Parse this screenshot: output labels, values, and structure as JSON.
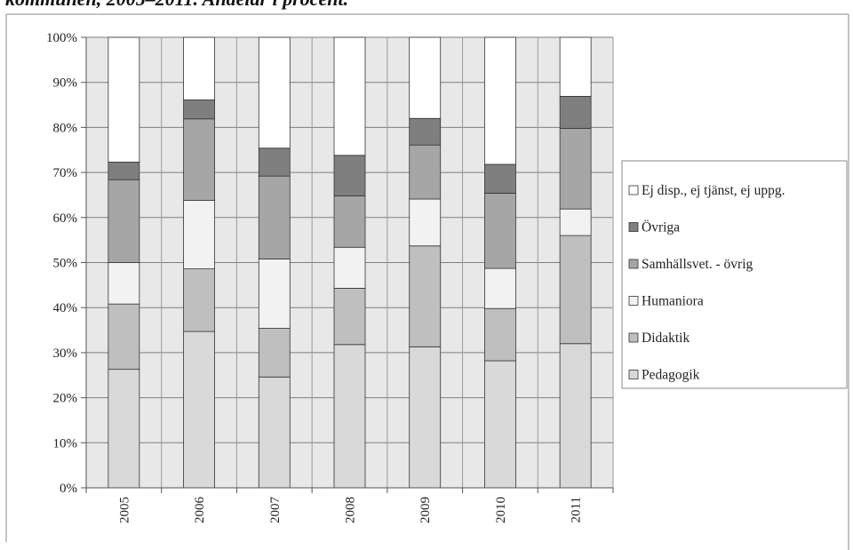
{
  "title": "kommunen, 2005–2011. Andelar i procent.",
  "chart_data": {
    "type": "bar",
    "stacked": true,
    "percent": true,
    "categories": [
      "2005",
      "2006",
      "2007",
      "2008",
      "2009",
      "2010",
      "2011"
    ],
    "ylim": [
      0,
      100
    ],
    "yticks": [
      "0%",
      "10%",
      "20%",
      "30%",
      "40%",
      "50%",
      "60%",
      "70%",
      "80%",
      "90%",
      "100%"
    ],
    "grid": true,
    "legend_position": "right",
    "series": [
      {
        "name": "Pedagogik",
        "color": "#d9d9d9",
        "values": [
          26.3,
          34.7,
          24.6,
          31.8,
          31.3,
          28.2,
          32.0
        ]
      },
      {
        "name": "Didaktik",
        "color": "#bfbfbf",
        "values": [
          14.5,
          13.9,
          10.8,
          12.5,
          22.4,
          11.6,
          24.0
        ]
      },
      {
        "name": "Humaniora",
        "color": "#f2f2f2",
        "values": [
          9.2,
          15.2,
          15.4,
          9.1,
          10.4,
          8.9,
          5.9
        ]
      },
      {
        "name": "Samhällsvet. - övrig",
        "color": "#a6a6a6",
        "values": [
          18.4,
          18.1,
          18.4,
          11.4,
          12.0,
          16.7,
          17.9
        ]
      },
      {
        "name": "Övriga",
        "color": "#7f7f7f",
        "values": [
          3.9,
          4.2,
          6.2,
          9.0,
          5.9,
          6.4,
          7.1
        ]
      },
      {
        "name": "Ej disp., ej tjänst, ej uppg.",
        "color": "#ffffff",
        "values": [
          27.7,
          13.9,
          24.6,
          26.2,
          18.0,
          28.2,
          13.1
        ]
      }
    ]
  }
}
